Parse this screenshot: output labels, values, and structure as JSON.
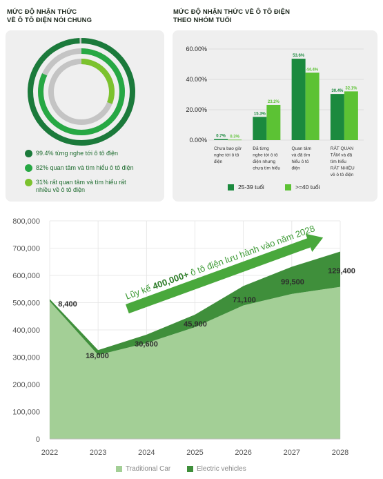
{
  "left_panel": {
    "title_lines": [
      "MỨC ĐỘ NHẬN THỨC",
      "VỀ Ô TÔ ĐIỆN NÓI CHUNG"
    ],
    "rings": [
      {
        "label": "99.4% từng nghe tới ô tô điện",
        "value": 99.4,
        "color": "#1b7a3b"
      },
      {
        "label": "82% quan tâm và tìm hiểu ô tô điện",
        "value": 82,
        "color": "#27a844"
      },
      {
        "label": "31% rất quan tâm và tìm hiểu rất nhiều về ô tô điện",
        "value": 31,
        "color": "#7cc22e"
      }
    ],
    "ring_track_color": "#c4c4c4"
  },
  "right_panel": {
    "title_lines": [
      "MỨC ĐỘ NHẬN THỨC VỀ Ô TÔ ĐIỆN",
      "THEO NHÓM TUỔI"
    ]
  },
  "chart_data": [
    {
      "type": "bar",
      "categories": [
        [
          "Chưa bao giờ",
          "nghe tới ô tô",
          "điện"
        ],
        [
          "Đã từng",
          "nghe tới ô tô",
          "điện nhưng",
          "chưa tìm hiểu"
        ],
        [
          "Quan tâm",
          "và đã tìm",
          "hiểu ô tô",
          "điện"
        ],
        [
          "RẤT QUAN",
          "TÂM và đã",
          "tìm hiểu",
          "RẤT NHIỀU",
          "về ô tô điện"
        ]
      ],
      "series": [
        {
          "name": "25-39 tuổi",
          "values": [
            0.7,
            15.3,
            53.6,
            30.4
          ],
          "labels": [
            "0.7%",
            "15.3%",
            "53.6%",
            "30.4%"
          ],
          "color": "#1b8a3e"
        },
        {
          "name": ">=40 tuổi",
          "values": [
            0.3,
            23.2,
            44.4,
            32.1
          ],
          "labels": [
            "0.3%",
            "23.2%",
            "44.4%",
            "32.1%"
          ],
          "color": "#5cc234"
        }
      ],
      "y_ticks": [
        0,
        20,
        40,
        60
      ],
      "y_tick_labels": [
        "0.00%",
        "20.00%",
        "40.00%",
        "60.00%"
      ],
      "ylim": [
        0,
        60
      ],
      "grid": true
    },
    {
      "type": "area",
      "x": [
        "2022",
        "2023",
        "2024",
        "2025",
        "2026",
        "2027",
        "2028"
      ],
      "series": [
        {
          "name": "Traditional Car",
          "values": [
            505000,
            308000,
            352000,
            410000,
            490000,
            532000,
            558000
          ],
          "color": "#a3cf96"
        },
        {
          "name": "Electric vehicles",
          "values": [
            8400,
            18000,
            30600,
            45900,
            71100,
            99500,
            129400
          ],
          "color": "#3f8f3b"
        }
      ],
      "point_labels": [
        "8,400",
        "18,000",
        "30,600",
        "45,900",
        "71,100",
        "99,500",
        "129,400"
      ],
      "y_ticks": [
        0,
        100000,
        200000,
        300000,
        400000,
        500000,
        600000,
        700000,
        800000
      ],
      "y_tick_labels": [
        "0",
        "100,000",
        "200,000",
        "300,000",
        "400,000",
        "500,000",
        "600,000",
        "700,000",
        "800,000"
      ],
      "ylim": [
        0,
        800000
      ],
      "stacked": true,
      "grid": true,
      "legend_position": "bottom",
      "annotation": {
        "prefix": "Lũy kế ",
        "bold": "400,000+",
        "suffix": " ô tô điện lưu hành vào năm 2028"
      }
    }
  ]
}
